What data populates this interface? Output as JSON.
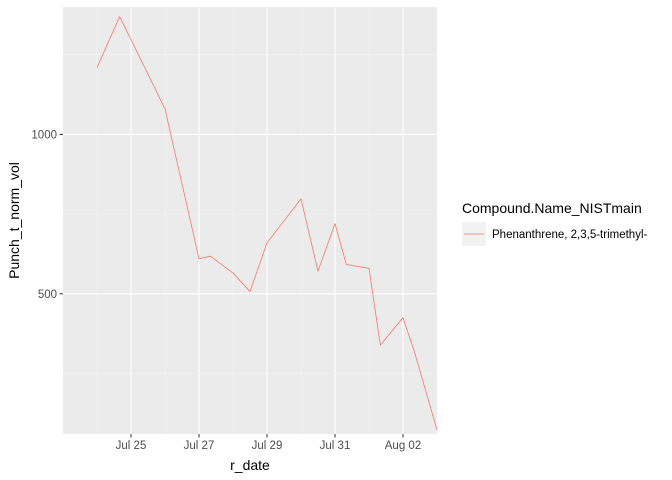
{
  "chart_data": {
    "type": "line",
    "xlabel": "r_date",
    "ylabel": "Punch_t_norm_vol",
    "x_ticks": [
      "Jul 25",
      "Jul 27",
      "Jul 29",
      "Jul 31",
      "Aug 02"
    ],
    "y_ticks": [
      "500",
      "1000"
    ],
    "xlim": [
      "2023-07-23",
      "2023-08-03"
    ],
    "ylim": [
      60,
      1400
    ],
    "grid": true,
    "legend": {
      "title": "Compound.Name_NISTmain",
      "position": "right"
    },
    "series": [
      {
        "name": "Phenanthrene, 2,3,5-trimethyl-",
        "color": "#F8766D",
        "points": [
          {
            "x": "2023-07-24",
            "y": 1210
          },
          {
            "x": "2023-07-24T16:00",
            "y": 1370
          },
          {
            "x": "2023-07-26",
            "y": 1080
          },
          {
            "x": "2023-07-27",
            "y": 610
          },
          {
            "x": "2023-07-27T08:00",
            "y": 618
          },
          {
            "x": "2023-07-28",
            "y": 565
          },
          {
            "x": "2023-07-28T12:00",
            "y": 507
          },
          {
            "x": "2023-07-29",
            "y": 660
          },
          {
            "x": "2023-07-30",
            "y": 798
          },
          {
            "x": "2023-07-30T12:00",
            "y": 571
          },
          {
            "x": "2023-07-31",
            "y": 720
          },
          {
            "x": "2023-07-31T08:00",
            "y": 592
          },
          {
            "x": "2023-08-01",
            "y": 580
          },
          {
            "x": "2023-08-01T08:00",
            "y": 339
          },
          {
            "x": "2023-08-02",
            "y": 425
          },
          {
            "x": "2023-08-02T08:00",
            "y": 319
          },
          {
            "x": "2023-08-03",
            "y": 73
          }
        ]
      }
    ]
  }
}
